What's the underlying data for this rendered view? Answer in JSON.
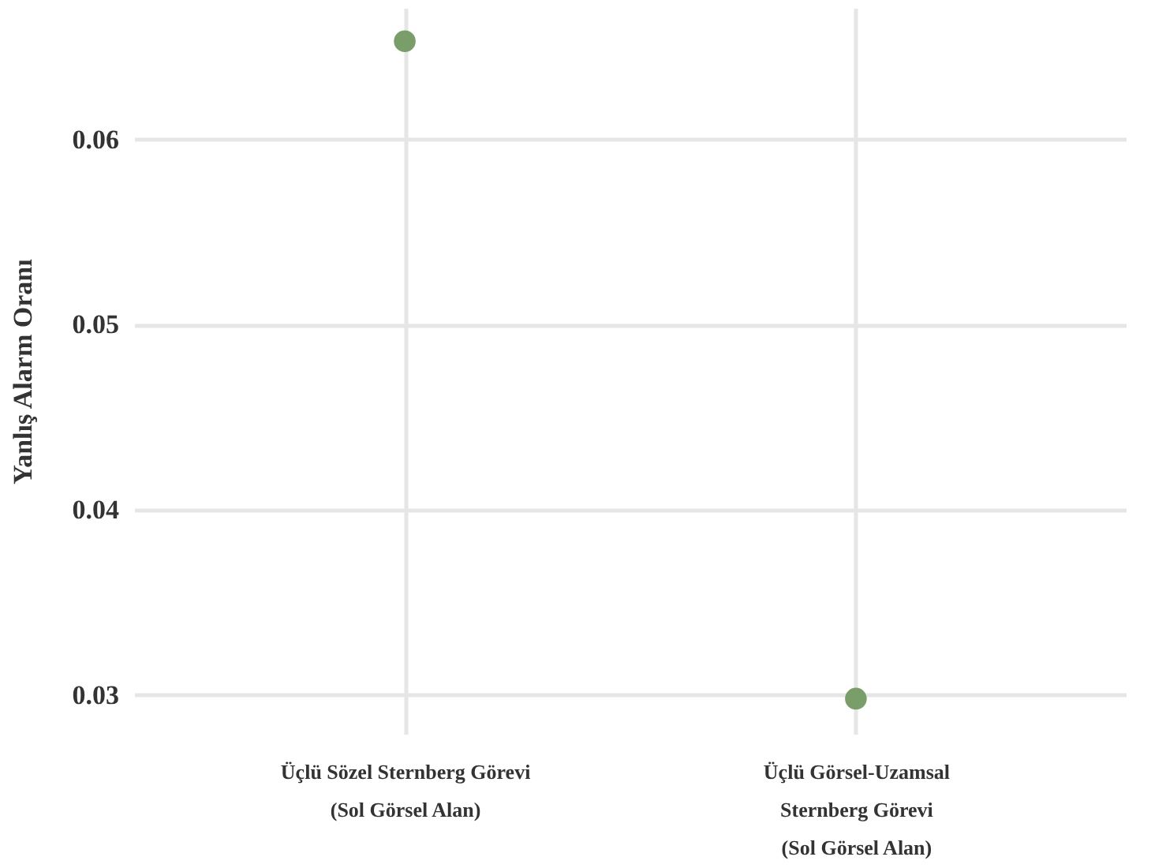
{
  "chart_data": {
    "type": "scatter",
    "ylabel": "Yanlış Alarm Oranı",
    "categories": [
      "Üçlü Sözel Sternberg Görevi\n(Sol Görsel Alan)",
      "Üçlü Görsel-Uzamsal\nSternberg Görevi\n(Sol Görsel Alan)"
    ],
    "series": [
      {
        "color": "#7a9e6a",
        "values": [
          0.0653,
          0.0298
        ]
      }
    ],
    "ylim": [
      0.0279,
      0.0671
    ],
    "yticks": [
      0.03,
      0.04,
      0.05,
      0.06
    ],
    "grid": true,
    "marker": "circle"
  }
}
